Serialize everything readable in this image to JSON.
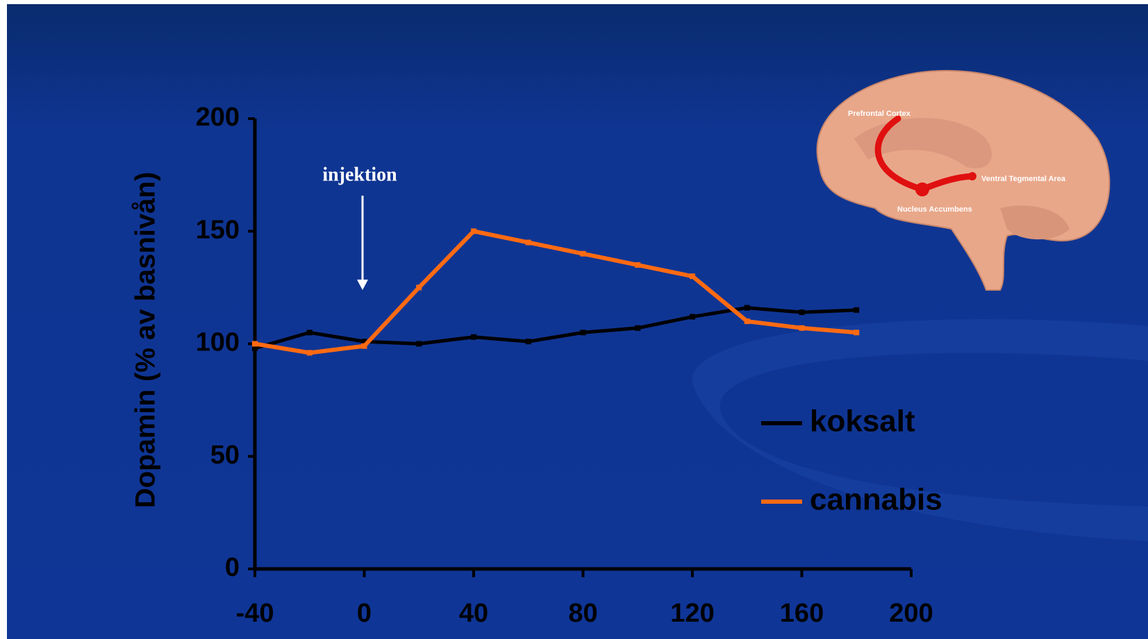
{
  "chart_data": {
    "type": "line",
    "y_label": "Dopamin (% av basnivån)",
    "annotation": "injektion",
    "x": [
      -40,
      -20,
      0,
      20,
      40,
      60,
      80,
      100,
      120,
      140,
      160,
      180
    ],
    "series": [
      {
        "name": "koksalt",
        "color": "#000000",
        "values": [
          98,
          105,
          101,
          100,
          103,
          101,
          105,
          107,
          112,
          116,
          114,
          115
        ]
      },
      {
        "name": "cannabis",
        "color": "#ff6a13",
        "values": [
          100,
          96,
          99,
          125,
          150,
          145,
          140,
          135,
          130,
          110,
          107,
          105
        ]
      }
    ],
    "xlim": [
      -40,
      200
    ],
    "xticks": [
      -40,
      0,
      40,
      80,
      120,
      160,
      200
    ],
    "ylim": [
      0,
      200
    ],
    "yticks": [
      0,
      50,
      100,
      150,
      200
    ],
    "brain_labels": [
      "Prefrontal Cortex",
      "Ventral Tegmental Area",
      "Nucleus Accumbens"
    ]
  }
}
